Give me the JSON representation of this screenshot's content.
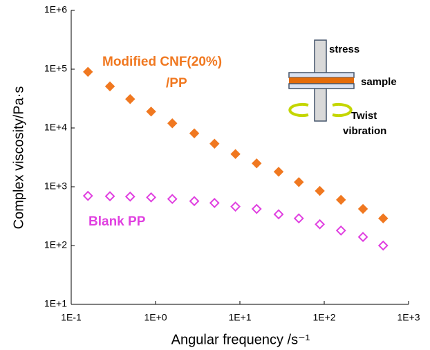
{
  "chart_data": {
    "type": "scatter",
    "x_label": "Angular frequency /s⁻¹",
    "y_label": "Complex viscosity/Pa·s",
    "log_x": true,
    "log_y": true,
    "grid": false,
    "xlim": [
      0.1,
      1000
    ],
    "ylim": [
      10,
      1000000
    ],
    "xticks": [
      {
        "value": 0.1,
        "label": "1E-1"
      },
      {
        "value": 1,
        "label": "1E+0"
      },
      {
        "value": 10,
        "label": "1E+1"
      },
      {
        "value": 100,
        "label": "1E+2"
      },
      {
        "value": 1000,
        "label": "1E+3"
      }
    ],
    "yticks": [
      {
        "value": 10,
        "label": "1E+1"
      },
      {
        "value": 100,
        "label": "1E+2"
      },
      {
        "value": 1000,
        "label": "1E+3"
      },
      {
        "value": 10000,
        "label": "1E+4"
      },
      {
        "value": 100000,
        "label": "1E+5"
      },
      {
        "value": 1000000,
        "label": "1E+6"
      }
    ],
    "x": [
      0.158,
      0.288,
      0.5,
      0.886,
      1.58,
      2.88,
      5,
      8.86,
      15.8,
      28.8,
      50,
      88.6,
      158,
      288,
      500
    ],
    "series": [
      {
        "color": "#f07820",
        "filled": true,
        "values": [
          90000,
          51000,
          31000,
          19000,
          12000,
          8100,
          5400,
          3600,
          2500,
          1800,
          1200,
          850,
          600,
          420,
          290
        ]
      },
      {
        "color": "#e040e0",
        "filled": false,
        "values": [
          700,
          690,
          680,
          660,
          620,
          570,
          530,
          460,
          420,
          340,
          290,
          230,
          180,
          140,
          100
        ]
      }
    ],
    "annotations": [
      {
        "text": "Modified CNF(20%)",
        "color": "#f07820"
      },
      {
        "text": "/PP",
        "color": "#f07820"
      },
      {
        "text": "Blank PP",
        "color": "#e040e0"
      }
    ],
    "inset": {
      "labels": [
        "stress",
        "sample",
        "Twist",
        "vibration"
      ]
    }
  }
}
